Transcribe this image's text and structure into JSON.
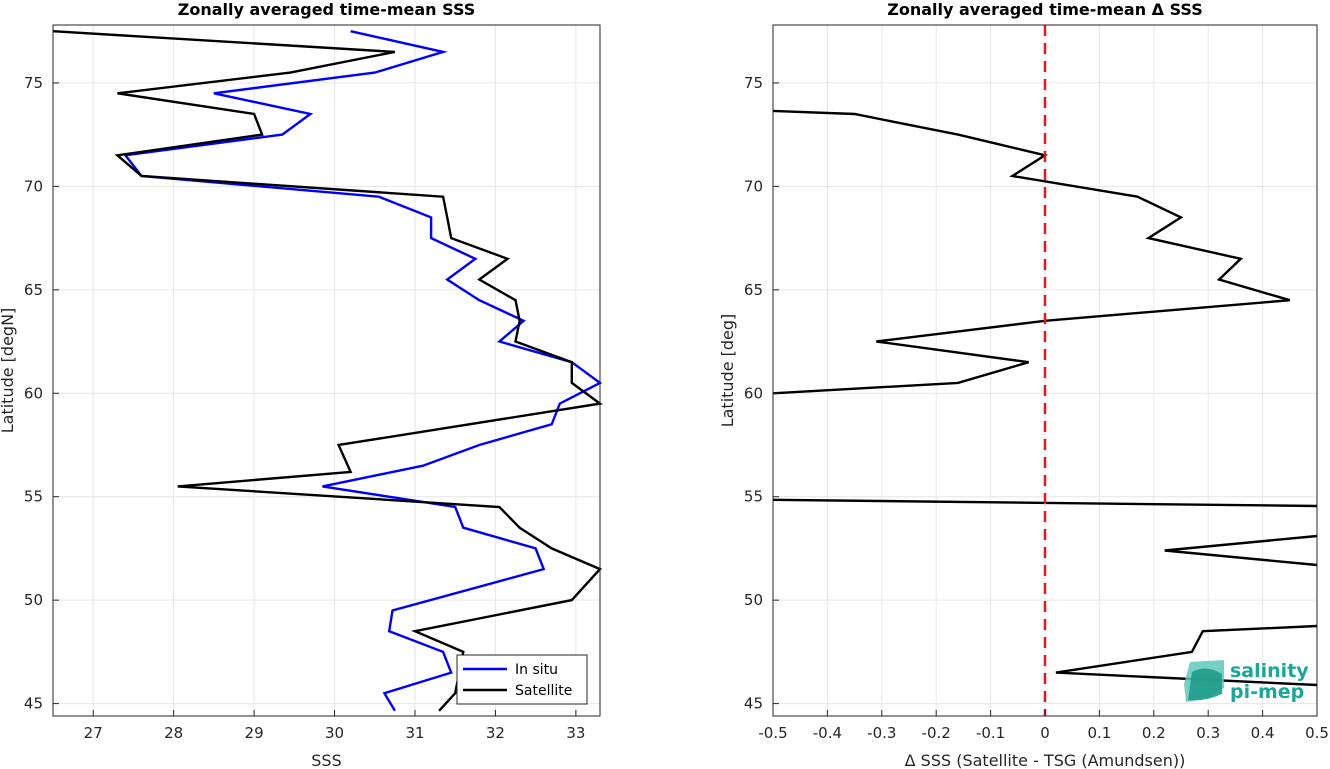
{
  "chart_data": [
    {
      "type": "line",
      "title": "Zonally averaged time-mean SSS",
      "xlabel": "SSS",
      "ylabel": "Latitude [degN]",
      "xlim": [
        26.5,
        33.3
      ],
      "ylim": [
        44.4,
        77.8
      ],
      "xticks": [
        27,
        28,
        29,
        30,
        31,
        32,
        33
      ],
      "yticks": [
        45,
        50,
        55,
        60,
        65,
        70,
        75
      ],
      "grid": true,
      "legend": "bottom-right",
      "series": [
        {
          "name": "In situ",
          "color": "#0000ff",
          "points": [
            [
              30.75,
              44.65
            ],
            [
              30.62,
              45.5
            ],
            [
              31.45,
              46.5
            ],
            [
              31.35,
              47.5
            ],
            [
              30.68,
              48.5
            ],
            [
              30.72,
              49.5
            ],
            [
              32.6,
              51.5
            ],
            [
              32.5,
              52.5
            ],
            [
              31.6,
              53.5
            ],
            [
              31.5,
              54.5
            ],
            [
              29.85,
              55.5
            ],
            [
              31.1,
              56.5
            ],
            [
              31.8,
              57.5
            ],
            [
              32.7,
              58.5
            ],
            [
              32.8,
              59.5
            ],
            [
              33.3,
              60.5
            ],
            [
              32.95,
              61.5
            ],
            [
              32.05,
              62.5
            ],
            [
              32.35,
              63.5
            ],
            [
              31.8,
              64.5
            ],
            [
              31.4,
              65.5
            ],
            [
              31.75,
              66.5
            ],
            [
              31.2,
              67.5
            ],
            [
              31.2,
              68.5
            ],
            [
              30.55,
              69.5
            ],
            [
              27.6,
              70.5
            ],
            [
              27.4,
              71.5
            ],
            [
              29.35,
              72.5
            ],
            [
              29.7,
              73.5
            ],
            [
              28.5,
              74.5
            ],
            [
              30.5,
              75.5
            ],
            [
              31.35,
              76.5
            ],
            [
              30.2,
              77.5
            ]
          ]
        },
        {
          "name": "Satellite",
          "color": "#000000",
          "points": [
            [
              31.3,
              44.65
            ],
            [
              31.5,
              45.5
            ],
            [
              31.55,
              46.5
            ],
            [
              31.6,
              47.5
            ],
            [
              31.0,
              48.5
            ],
            [
              32.95,
              50.0
            ],
            [
              33.3,
              51.5
            ],
            [
              32.7,
              52.5
            ],
            [
              32.3,
              53.5
            ],
            [
              32.05,
              54.5
            ],
            [
              28.05,
              55.5
            ],
            [
              30.2,
              56.2
            ],
            [
              30.05,
              57.5
            ],
            [
              33.3,
              59.5
            ],
            [
              32.95,
              60.5
            ],
            [
              32.95,
              61.5
            ],
            [
              32.25,
              62.5
            ],
            [
              32.3,
              63.5
            ],
            [
              32.25,
              64.5
            ],
            [
              31.8,
              65.5
            ],
            [
              32.15,
              66.5
            ],
            [
              31.45,
              67.5
            ],
            [
              31.4,
              68.5
            ],
            [
              31.35,
              69.5
            ],
            [
              27.6,
              70.5
            ],
            [
              27.3,
              71.5
            ],
            [
              29.1,
              72.5
            ],
            [
              29.0,
              73.5
            ],
            [
              27.3,
              74.5
            ],
            [
              29.45,
              75.5
            ],
            [
              30.75,
              76.5
            ],
            [
              26.5,
              77.5
            ]
          ]
        }
      ]
    },
    {
      "type": "line",
      "title": "Zonally averaged time-mean Δ SSS",
      "xlabel": "Δ SSS (Satellite - TSG (Amundsen))",
      "ylabel": "Latitude [deg]",
      "xlim": [
        -0.5,
        0.5
      ],
      "ylim": [
        44.4,
        77.8
      ],
      "xticks": [
        -0.5,
        -0.4,
        -0.3,
        -0.2,
        -0.1,
        0,
        0.1,
        0.2,
        0.3,
        0.4,
        0.5
      ],
      "xtick_labels": [
        "-0.5",
        "-0.4",
        "-0.3",
        "-0.2",
        "-0.1",
        "0",
        "0.1",
        "0.2",
        "0.3",
        "0.4",
        "0.5"
      ],
      "yticks": [
        45,
        50,
        55,
        60,
        65,
        70,
        75
      ],
      "grid": true,
      "reference_line": {
        "x": 0,
        "color": "#e3191c",
        "style": "dashed"
      },
      "series": [
        {
          "color": "#000000",
          "segments": [
            [
              [
                0.5,
                45.9
              ],
              [
                0.02,
                46.5
              ],
              [
                0.27,
                47.5
              ],
              [
                0.29,
                48.5
              ],
              [
                0.5,
                48.75
              ]
            ],
            [
              [
                0.5,
                51.7
              ],
              [
                0.22,
                52.4
              ],
              [
                0.5,
                53.1
              ]
            ],
            [
              [
                0.5,
                54.55
              ],
              [
                -0.5,
                54.85
              ]
            ],
            [
              [
                -0.5,
                60.0
              ],
              [
                -0.16,
                60.5
              ],
              [
                -0.03,
                61.5
              ],
              [
                -0.31,
                62.5
              ],
              [
                0.0,
                63.5
              ],
              [
                0.45,
                64.5
              ],
              [
                0.32,
                65.5
              ],
              [
                0.36,
                66.5
              ],
              [
                0.19,
                67.5
              ],
              [
                0.25,
                68.5
              ],
              [
                0.17,
                69.5
              ],
              [
                -0.06,
                70.5
              ],
              [
                0.0,
                71.5
              ],
              [
                -0.16,
                72.5
              ],
              [
                -0.35,
                73.5
              ],
              [
                -0.5,
                73.65
              ]
            ]
          ]
        }
      ]
    }
  ],
  "logo": {
    "line1": "salinity",
    "line2": "pi-mep"
  }
}
